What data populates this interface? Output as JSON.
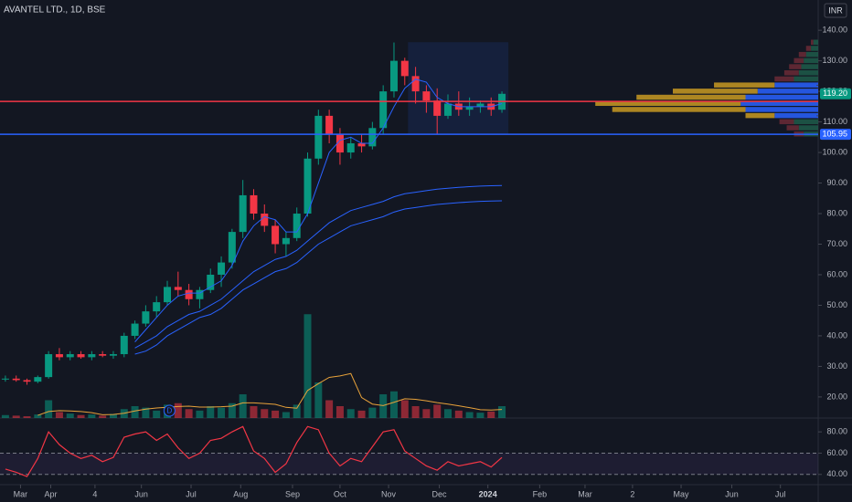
{
  "chart_data": [
    {
      "type": "candlestick",
      "title": "AVANTEL LTD., 1D, BSE",
      "currency": "INR",
      "categories": [
        null,
        null,
        null,
        null,
        null,
        null,
        null,
        null,
        null,
        null,
        null,
        null,
        null,
        null,
        null,
        null,
        null,
        null,
        null,
        null,
        null,
        null,
        null,
        null,
        null,
        null,
        null,
        null,
        null,
        null,
        null,
        null,
        null,
        null,
        null,
        null,
        null,
        null,
        null,
        null,
        null,
        null,
        null,
        null,
        null,
        null,
        null
      ],
      "open": [
        26,
        26,
        25.5,
        25,
        26.5,
        34,
        33,
        34,
        33,
        34,
        33.5,
        34,
        40,
        44,
        48,
        51,
        56,
        55,
        52,
        55,
        60,
        64,
        74,
        86,
        80,
        76,
        70,
        72,
        80,
        98,
        112,
        106,
        100,
        103,
        102,
        108,
        120,
        130,
        125,
        120,
        117,
        112,
        116,
        114,
        115,
        116,
        114
      ],
      "high": [
        27,
        27,
        26,
        27,
        35,
        36,
        35,
        35,
        35,
        35,
        35,
        41,
        45,
        50,
        53,
        58,
        61,
        57,
        56,
        62,
        66,
        75,
        91,
        88,
        83,
        78,
        74,
        82,
        100,
        114,
        114,
        108,
        105,
        106,
        110,
        122,
        136,
        131,
        128,
        122,
        121,
        119,
        120,
        118,
        117,
        118,
        120
      ],
      "low": [
        25,
        25,
        24,
        24.5,
        26,
        32,
        32,
        32.5,
        32,
        33,
        32.5,
        33,
        39,
        43,
        46,
        50,
        53,
        50,
        49,
        54,
        56,
        62,
        72,
        78,
        74,
        67,
        66,
        71,
        79,
        96,
        103,
        96,
        98,
        100,
        101,
        106,
        118,
        122,
        116,
        113,
        106,
        111,
        112,
        112,
        113,
        112,
        113
      ],
      "close": [
        26,
        25.5,
        25,
        26.5,
        34,
        33,
        34,
        33,
        34,
        33.5,
        34,
        40,
        44,
        48,
        51,
        56,
        55,
        52,
        55,
        60,
        64,
        74,
        86,
        80,
        76,
        70,
        72,
        80,
        98,
        112,
        106,
        100,
        103,
        102,
        108,
        120,
        130,
        125,
        120,
        117,
        112,
        116,
        114,
        115,
        116,
        114,
        119.2
      ],
      "up_color": "#089981",
      "down_color": "#f23645",
      "xlim": [
        -0.5,
        75.3
      ],
      "xticks": [
        {
          "value": 1.4,
          "label": "Mar"
        },
        {
          "value": 4.2,
          "label": "Apr"
        },
        {
          "value": 8.3,
          "label": "4"
        },
        {
          "value": 12.6,
          "label": "Jun"
        },
        {
          "value": 17.2,
          "label": "Jul"
        },
        {
          "value": 21.8,
          "label": "Aug"
        },
        {
          "value": 26.6,
          "label": "Sep"
        },
        {
          "value": 31.0,
          "label": "Oct"
        },
        {
          "value": 35.5,
          "label": "Nov"
        },
        {
          "value": 40.2,
          "label": "Dec"
        },
        {
          "value": 44.7,
          "label": "2024"
        },
        {
          "value": 49.5,
          "label": "Feb"
        },
        {
          "value": 53.7,
          "label": "Mar"
        },
        {
          "value": 58.1,
          "label": "2"
        },
        {
          "value": 62.6,
          "label": "May"
        },
        {
          "value": 67.3,
          "label": "Jun"
        },
        {
          "value": 71.8,
          "label": "Jul"
        }
      ],
      "ylim": [
        13.1,
        149.9
      ],
      "yticks": [
        {
          "value": 20,
          "label": "20.00"
        },
        {
          "value": 30,
          "label": "30.00"
        },
        {
          "value": 40,
          "label": "40.00"
        },
        {
          "value": 50,
          "label": "50.00"
        },
        {
          "value": 60,
          "label": "60.00"
        },
        {
          "value": 70,
          "label": "70.00"
        },
        {
          "value": 80,
          "label": "80.00"
        },
        {
          "value": 90,
          "label": "90.00"
        },
        {
          "value": 100,
          "label": "100.00"
        },
        {
          "value": 110,
          "label": "110.00"
        },
        {
          "value": 120,
          "label": "120.00"
        },
        {
          "value": 130,
          "label": "130.00"
        },
        {
          "value": 140,
          "label": "140.00"
        }
      ],
      "series": [
        {
          "color": "#2962ff",
          "values": [
            null,
            null,
            null,
            null,
            null,
            null,
            null,
            null,
            null,
            null,
            null,
            null,
            38,
            42,
            46,
            50,
            53,
            54,
            54,
            56,
            58,
            63,
            71,
            76,
            79,
            78,
            74,
            74,
            80,
            90,
            100,
            104,
            105,
            103,
            103,
            108,
            115,
            121,
            124,
            123,
            118,
            116,
            115,
            115,
            115,
            115,
            116
          ]
        },
        {
          "color": "#2962ff",
          "values": [
            null,
            null,
            null,
            null,
            null,
            null,
            null,
            null,
            null,
            null,
            null,
            null,
            36,
            38,
            40,
            43,
            45,
            47,
            48,
            50,
            52,
            55,
            58,
            61,
            63,
            65,
            66,
            68,
            71,
            74,
            77,
            79,
            81,
            82,
            83,
            84,
            85.5,
            86.5,
            87,
            87.5,
            88,
            88.3,
            88.6,
            88.8,
            89,
            89.1,
            89.2
          ]
        },
        {
          "color": "#2962ff",
          "values": [
            null,
            null,
            null,
            null,
            null,
            null,
            null,
            null,
            null,
            null,
            null,
            null,
            34,
            35,
            37,
            40,
            42,
            44,
            46,
            47,
            49,
            52,
            55,
            57,
            59,
            61,
            62,
            64,
            67,
            70,
            72,
            74,
            76,
            77,
            78,
            79,
            80.5,
            81.5,
            82,
            82.5,
            83,
            83.3,
            83.6,
            83.8,
            84,
            84.1,
            84.2
          ]
        }
      ],
      "hlines": [
        {
          "value": 116.7,
          "color": "#f23645"
        },
        {
          "value": 105.95,
          "color": "#2962ff"
        }
      ],
      "last_price": {
        "value": 119.2,
        "label": "119.20"
      },
      "rectangle": {
        "x": [
          37.3,
          46.6
        ],
        "y": [
          106,
          136.1
        ]
      },
      "events": [
        {
          "x": 15.2,
          "label": "D"
        }
      ]
    },
    {
      "type": "bar",
      "ylim": [
        0,
        400
      ],
      "values": [
        10,
        8,
        6,
        12,
        60,
        20,
        15,
        10,
        12,
        8,
        14,
        30,
        40,
        35,
        25,
        45,
        50,
        30,
        25,
        40,
        35,
        50,
        80,
        40,
        30,
        25,
        20,
        45,
        350,
        120,
        60,
        40,
        30,
        25,
        35,
        80,
        90,
        60,
        40,
        30,
        45,
        30,
        25,
        20,
        18,
        22,
        40
      ],
      "ma": {
        "color": "#e8a23a",
        "values": [
          null,
          null,
          null,
          9,
          22,
          25,
          24,
          22,
          18,
          11,
          12,
          16,
          24,
          30,
          34,
          36,
          39,
          40,
          37,
          37,
          38,
          40,
          51,
          51,
          49,
          46,
          36,
          33,
          93,
          116,
          137,
          142,
          150,
          69,
          47,
          42,
          53,
          65,
          63,
          58,
          52,
          47,
          41,
          35,
          28,
          27,
          29
        ]
      }
    },
    {
      "type": "bar",
      "orientation": "horizontal",
      "xlim": [
        0,
        100
      ],
      "levels": [
        106,
        108,
        110,
        112,
        114,
        116,
        118,
        120,
        122,
        124,
        126,
        128,
        130,
        132,
        134,
        136
      ],
      "value_area": [
        112,
        122
      ],
      "series": [
        {
          "color": "#1f5c4a",
          "value_area_color": "#2962ff",
          "values": [
            6,
            8,
            10,
            18,
            30,
            32,
            30,
            25,
            18,
            10,
            8,
            7,
            6,
            5,
            3,
            2
          ]
        },
        {
          "color": "#6b2a36",
          "value_area_color": "#c99a22",
          "values": [
            4,
            5,
            6,
            12,
            55,
            60,
            45,
            35,
            25,
            8,
            6,
            5,
            4,
            3,
            2,
            1
          ]
        }
      ]
    },
    {
      "type": "line",
      "color": "#f23645",
      "ylim": [
        30.4,
        93
      ],
      "yticks": [
        {
          "value": 40,
          "label": "40.00"
        },
        {
          "value": 60,
          "label": "60.00"
        },
        {
          "value": 80,
          "label": "80.00"
        }
      ],
      "bands": [
        40,
        60
      ],
      "values": [
        45,
        42,
        38,
        55,
        80,
        68,
        60,
        55,
        58,
        52,
        56,
        75,
        78,
        80,
        72,
        78,
        65,
        55,
        60,
        72,
        74,
        80,
        85,
        62,
        55,
        42,
        50,
        70,
        85,
        82,
        60,
        48,
        55,
        52,
        66,
        80,
        82,
        62,
        55,
        48,
        44,
        52,
        48,
        50,
        52,
        47,
        56
      ]
    }
  ]
}
